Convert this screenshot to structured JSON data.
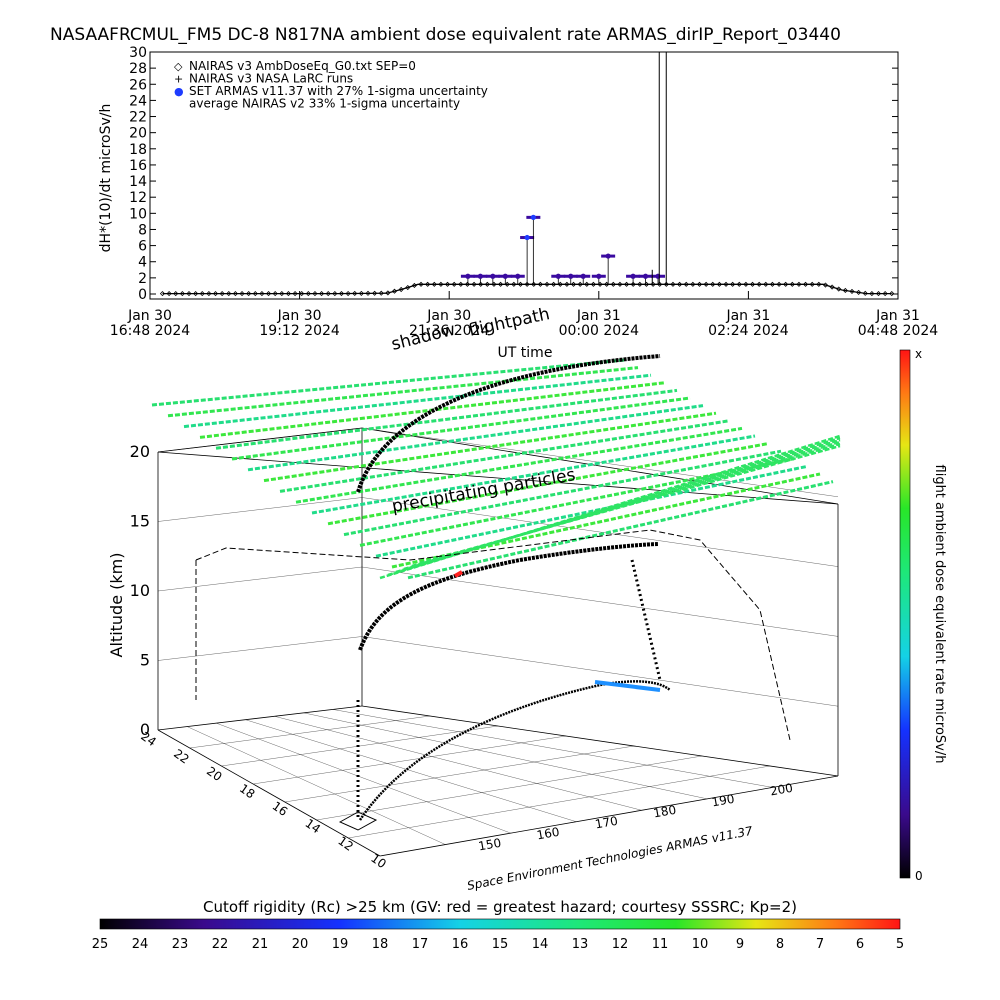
{
  "title": "NASAAFRCMUL_FM5 DC-8   N817NA ambient dose equivalent rate ARMAS_dirIP_Report_03440",
  "chart_data": [
    {
      "type": "line",
      "ylabel": "dH*(10)/dt microSv/h",
      "xlabel": "UT time",
      "ylim": [
        0,
        30
      ],
      "yticks": [
        0,
        2,
        4,
        6,
        8,
        10,
        12,
        14,
        16,
        18,
        20,
        22,
        24,
        26,
        28,
        30
      ],
      "xticks": [
        {
          "line1": "Jan 30",
          "line2": "16:48 2024",
          "t": 0
        },
        {
          "line1": "Jan 30",
          "line2": "19:12 2024",
          "t": 2.4
        },
        {
          "line1": "Jan 30",
          "line2": "21:36 2024",
          "t": 4.8
        },
        {
          "line1": "Jan 31",
          "line2": "00:00 2024",
          "t": 7.2
        },
        {
          "line1": "Jan 31",
          "line2": "02:24 2024",
          "t": 9.6
        },
        {
          "line1": "Jan 31",
          "line2": "04:48 2024",
          "t": 12.0
        }
      ],
      "legend_position": "top-left",
      "legend": [
        {
          "symbol": "◇",
          "label": "NAIRAS v3 AmbDoseEq_G0.txt SEP=0",
          "color": "#000000"
        },
        {
          "symbol": "+",
          "label": "NAIRAS v3 NASA LaRC runs",
          "color": "#000000"
        },
        {
          "symbol": "●",
          "label": "SET ARMAS v11.37 with 27% 1-sigma uncertainty",
          "color": "#1e3cff"
        },
        {
          "symbol": "",
          "label": "average NAIRAS v2 33% 1-sigma uncertainty",
          "color": "#000000"
        }
      ],
      "series": [
        {
          "name": "NAIRAS v3 AmbDoseEq_G0.txt SEP=0",
          "color": "#000000",
          "x": [
            0.2,
            1.0,
            2.0,
            3.0,
            3.8,
            4.05,
            4.3,
            5.0,
            6.0,
            7.0,
            8.0,
            9.0,
            10.0,
            10.8,
            11.1,
            11.5,
            11.9
          ],
          "y": [
            0.05,
            0.05,
            0.05,
            0.05,
            0.1,
            0.6,
            1.2,
            1.2,
            1.2,
            1.2,
            1.2,
            1.2,
            1.2,
            1.2,
            0.5,
            0.05,
            0.05
          ]
        },
        {
          "name": "SET ARMAS v11.37",
          "color": "#3a0aa0",
          "x": [
            5.1,
            5.3,
            5.5,
            5.7,
            5.9,
            6.05,
            6.15,
            6.55,
            6.75,
            6.95,
            7.2,
            7.35,
            7.75,
            7.95,
            8.15
          ],
          "y": [
            2.2,
            2.2,
            2.2,
            2.2,
            2.2,
            7.0,
            9.5,
            2.2,
            2.2,
            2.2,
            2.2,
            4.7,
            2.2,
            2.2,
            2.2
          ]
        }
      ],
      "spike": {
        "t": 8.25,
        "value": 30
      }
    },
    {
      "type": "scatter",
      "zlabel": "Altitude (km)",
      "zticks": [
        0,
        5,
        10,
        15,
        20
      ],
      "zlim": [
        0,
        20
      ],
      "ylabel": "",
      "yticks": [
        10,
        12,
        14,
        16,
        18,
        20,
        22,
        24
      ],
      "xlabel": "",
      "xticks": [
        150,
        160,
        170,
        180,
        190,
        200
      ],
      "annotations": [
        "shadow",
        "flightpath",
        "precipitating particles"
      ],
      "colorbar": {
        "label": "flight ambient dose equivalent rate microSv/h",
        "top_label": "x",
        "bottom_label": "0"
      },
      "credit": "Space Environment Technologies ARMAS v11.37"
    },
    {
      "type": "heatmap",
      "title": "Cutoff rigidity (Rc) >25 km (GV: red = greatest hazard; courtesy SSSRC; Kp=2)",
      "ticks": [
        25,
        24,
        23,
        22,
        21,
        20,
        19,
        18,
        17,
        16,
        15,
        14,
        13,
        12,
        11,
        10,
        9,
        8,
        7,
        6,
        5
      ]
    }
  ]
}
